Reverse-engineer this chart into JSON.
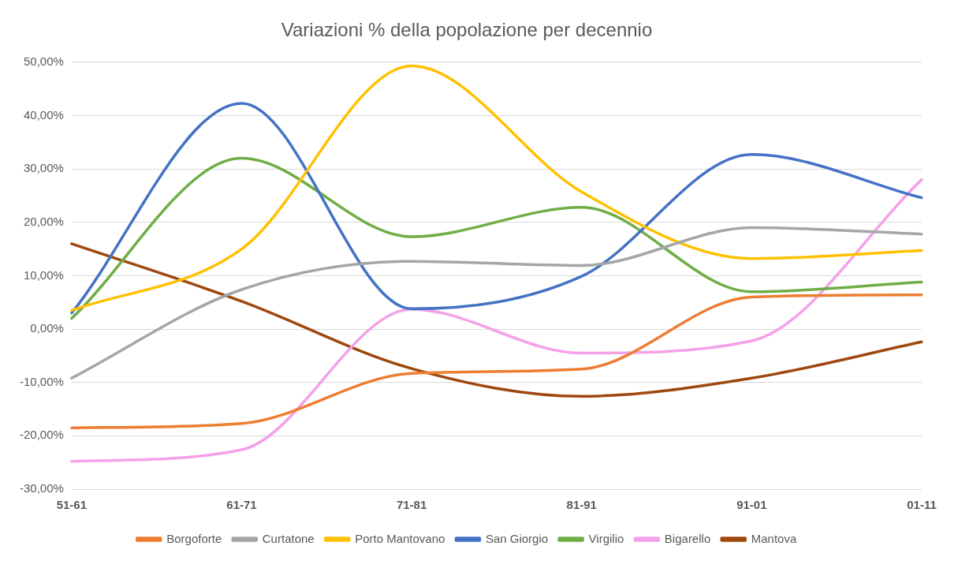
{
  "chart_data": {
    "type": "line",
    "title": "Variazioni % della popolazione per decennio",
    "categories": [
      "51-61",
      "61-71",
      "71-81",
      "81-91",
      "91-01",
      "01-11"
    ],
    "series": [
      {
        "name": "Borgoforte",
        "color": "#ed7d31",
        "values": [
          -18.5,
          -17.7,
          -8.3,
          -7.5,
          6,
          6.4
        ]
      },
      {
        "name": "Curtatone",
        "color": "#a5a5a5",
        "values": [
          -9.2,
          7.4,
          12.7,
          11.9,
          19,
          17.8
        ]
      },
      {
        "name": "Porto Mantovano",
        "color": "#ffc000",
        "values": [
          3.5,
          15,
          49.3,
          25.7,
          13.2,
          14.7
        ]
      },
      {
        "name": "San Giorgio",
        "color": "#4472c4",
        "values": [
          3,
          42.3,
          3.8,
          9.9,
          32.7,
          24.6
        ]
      },
      {
        "name": "Virgilio",
        "color": "#70ad47",
        "values": [
          2,
          32,
          17.3,
          22.8,
          7,
          8.8
        ]
      },
      {
        "name": "Bigarello",
        "color": "#f4a1e8",
        "values": [
          -24.8,
          -22.6,
          3.7,
          -4.5,
          -2.2,
          28
        ]
      },
      {
        "name": "Mantova",
        "color": "#9e480e",
        "values": [
          16,
          5.2,
          -7.4,
          -12.6,
          -9.2,
          -2.4
        ]
      }
    ],
    "ylim": [
      -30,
      50
    ],
    "yticks": [
      {
        "value": -30,
        "label": "-30,00%"
      },
      {
        "value": -20,
        "label": "-20,00%"
      },
      {
        "value": -10,
        "label": "-10,00%"
      },
      {
        "value": 0,
        "label": "0,00%"
      },
      {
        "value": 10,
        "label": "10,00%"
      },
      {
        "value": 20,
        "label": "20,00%"
      },
      {
        "value": 30,
        "label": "30,00%"
      },
      {
        "value": 40,
        "label": "40,00%"
      },
      {
        "value": 50,
        "label": "50,00%"
      }
    ],
    "grid": "y",
    "legend": "bottom",
    "marker": "none",
    "line_style": "solid"
  }
}
